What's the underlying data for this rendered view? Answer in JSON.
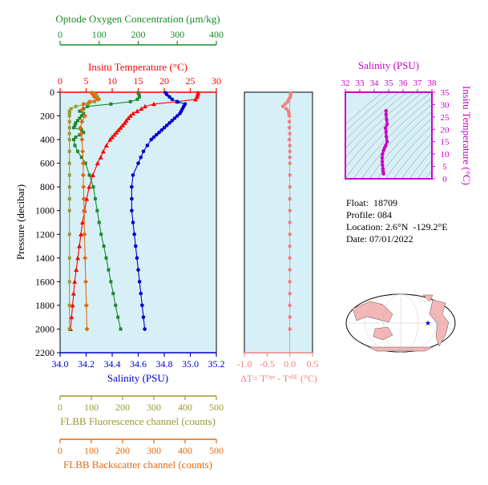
{
  "colors": {
    "background": "#ffffff",
    "panel": "#d7f0f7",
    "oxygen": "#1a8a2a",
    "temperature": "#ff0000",
    "salinity": "#0000cc",
    "fluorescence": "#9a9a30",
    "backscatter": "#e06a10",
    "delta_t": "#f08080",
    "ts_axis": "#cc00cc",
    "map_land": "#f4b6b6",
    "map_ocean": "#ffffff"
  },
  "chart_data": [
    {
      "type": "line",
      "title": "",
      "ylabel": "Pressure (decibar)",
      "ylim": [
        2200,
        0
      ],
      "yticks": [
        0,
        200,
        400,
        600,
        800,
        1000,
        1200,
        1400,
        1600,
        1800,
        2000,
        2200
      ],
      "axes": {
        "oxygen": {
          "label": "Optode Oxygen Concentration (μm/kg)",
          "range": [
            0,
            400
          ],
          "ticks": [
            0,
            100,
            200,
            300,
            400
          ]
        },
        "temperature": {
          "label": "Insitu Temperature (°C)",
          "range": [
            0,
            30
          ],
          "ticks": [
            0,
            5,
            10,
            15,
            20,
            25,
            30
          ]
        },
        "salinity": {
          "label": "Salinity (PSU)",
          "range": [
            34.0,
            35.2
          ],
          "ticks": [
            "34.0",
            "34.2",
            "34.4",
            "34.6",
            "34.8",
            "35.0",
            "35.2"
          ]
        },
        "fluorescence": {
          "label": "FLBB Fluorescence channel (counts)",
          "range": [
            0,
            500
          ],
          "ticks": [
            0,
            100,
            200,
            300,
            400,
            500
          ]
        },
        "backscatter": {
          "label": "FLBB Backscatter channel (counts)",
          "range": [
            0,
            500
          ],
          "ticks": [
            0,
            100,
            200,
            300,
            400,
            500
          ]
        }
      },
      "series": [
        {
          "key": "temperature",
          "marker": "triangle",
          "pressure": [
            5,
            20,
            40,
            60,
            80,
            100,
            120,
            140,
            160,
            180,
            200,
            220,
            240,
            260,
            280,
            300,
            320,
            340,
            360,
            380,
            400,
            450,
            500,
            550,
            600,
            700,
            800,
            900,
            1000,
            1100,
            1200,
            1300,
            1400,
            1500,
            1600,
            1700,
            1800,
            1900,
            2000
          ],
          "values": [
            26.5,
            26.4,
            26.3,
            26.0,
            22.5,
            18.0,
            16.3,
            15.6,
            14.8,
            14.0,
            13.5,
            13.1,
            12.7,
            12.4,
            12.0,
            11.6,
            11.2,
            10.8,
            10.4,
            10.0,
            9.6,
            8.9,
            8.3,
            7.8,
            7.2,
            6.3,
            5.6,
            5.1,
            4.7,
            4.3,
            4.0,
            3.7,
            3.4,
            3.1,
            2.8,
            2.6,
            2.4,
            2.2,
            2.0
          ]
        },
        {
          "key": "salinity",
          "marker": "circle",
          "pressure": [
            5,
            20,
            40,
            60,
            80,
            100,
            120,
            140,
            160,
            180,
            200,
            220,
            240,
            260,
            280,
            300,
            320,
            340,
            360,
            380,
            400,
            450,
            500,
            550,
            600,
            700,
            800,
            900,
            1000,
            1100,
            1200,
            1300,
            1400,
            1500,
            1600,
            1700,
            1800,
            1900,
            2000
          ],
          "values": [
            34.81,
            34.82,
            34.84,
            34.86,
            34.9,
            34.96,
            34.95,
            34.94,
            34.93,
            34.92,
            34.9,
            34.88,
            34.86,
            34.84,
            34.82,
            34.8,
            34.78,
            34.76,
            34.74,
            34.72,
            34.7,
            34.67,
            34.64,
            34.62,
            34.6,
            34.56,
            34.55,
            34.55,
            34.55,
            34.56,
            34.57,
            34.58,
            34.59,
            34.6,
            34.61,
            34.62,
            34.63,
            34.64,
            34.65
          ]
        },
        {
          "key": "oxygen",
          "marker": "square",
          "pressure": [
            5,
            20,
            40,
            60,
            80,
            100,
            120,
            140,
            160,
            180,
            200,
            220,
            240,
            260,
            280,
            300,
            320,
            340,
            360,
            380,
            400,
            450,
            500,
            550,
            600,
            700,
            800,
            900,
            1000,
            1100,
            1200,
            1300,
            1400,
            1500,
            1600,
            1700,
            1800,
            1900,
            2000
          ],
          "values": [
            200,
            202,
            203,
            198,
            180,
            130,
            70,
            60,
            50,
            60,
            55,
            50,
            45,
            40,
            38,
            35,
            55,
            60,
            50,
            40,
            35,
            38,
            45,
            55,
            65,
            75,
            85,
            90,
            95,
            100,
            105,
            112,
            118,
            124,
            130,
            136,
            142,
            148,
            155
          ]
        },
        {
          "key": "fluorescence",
          "marker": "square",
          "pressure": [
            5,
            20,
            40,
            60,
            80,
            100,
            120,
            140,
            160,
            180,
            200,
            250,
            300,
            350,
            400,
            500,
            600,
            700,
            800,
            900,
            1000,
            1200,
            1400,
            1600,
            1800,
            2000
          ],
          "values": [
            110,
            115,
            120,
            125,
            110,
            90,
            50,
            35,
            30,
            30,
            30,
            30,
            30,
            30,
            30,
            30,
            30,
            30,
            30,
            30,
            30,
            30,
            30,
            30,
            30,
            30
          ]
        },
        {
          "key": "backscatter",
          "marker": "diamond",
          "pressure": [
            5,
            20,
            40,
            60,
            80,
            100,
            150,
            200,
            250,
            300,
            350,
            400,
            500,
            600,
            700,
            800,
            900,
            1000,
            1200,
            1400,
            1600,
            1800,
            2000
          ],
          "values": [
            100,
            105,
            110,
            120,
            95,
            75,
            70,
            80,
            70,
            65,
            68,
            70,
            72,
            74,
            74,
            75,
            76,
            77,
            78,
            80,
            82,
            84,
            86
          ]
        }
      ]
    },
    {
      "type": "scatter",
      "xlabel": "ΔT= Tᴼᵖᵗ - Tˢᴮᴱ (°C)",
      "xlim": [
        -1.0,
        0.5
      ],
      "xticks": [
        "-1.0",
        "-0.5",
        "0.0",
        "0.5"
      ],
      "ylim": [
        2200,
        0
      ],
      "series": [
        {
          "key": "delta_t",
          "marker": "circle",
          "pressure": [
            5,
            20,
            40,
            60,
            80,
            100,
            120,
            140,
            160,
            180,
            200,
            250,
            300,
            350,
            400,
            450,
            500,
            550,
            600,
            700,
            800,
            900,
            1000,
            1100,
            1200,
            1300,
            1400,
            1500,
            1600,
            1700,
            1800,
            1900,
            2000
          ],
          "values": [
            0.02,
            0.02,
            0.01,
            -0.02,
            -0.05,
            -0.1,
            -0.15,
            -0.08,
            -0.03,
            -0.02,
            -0.01,
            -0.01,
            -0.01,
            0.0,
            -0.01,
            0.0,
            0.0,
            0.0,
            0.0,
            0.0,
            0.0,
            0.0,
            0.0,
            0.0,
            0.0,
            0.0,
            0.0,
            0.0,
            0.0,
            0.0,
            0.0,
            0.0,
            0.0
          ]
        }
      ]
    },
    {
      "type": "line",
      "xlabel": "Salinity (PSU)",
      "ylabel": "Insitu Temperature (°C)",
      "xlim": [
        32,
        38
      ],
      "ylim": [
        0,
        35
      ],
      "xticks": [
        32,
        33,
        34,
        35,
        36,
        37,
        38
      ],
      "yticks": [
        0,
        5,
        10,
        15,
        20,
        25,
        30,
        35
      ],
      "series": [
        {
          "key": "ts",
          "marker": "circle",
          "salinity": [
            34.65,
            34.62,
            34.6,
            34.58,
            34.56,
            34.55,
            34.58,
            34.65,
            34.72,
            34.8,
            34.9,
            34.84,
            34.82,
            34.78,
            34.9,
            34.86,
            34.82,
            34.82
          ],
          "temperature": [
            2.0,
            3.0,
            4.0,
            5.5,
            7.0,
            8.5,
            10.0,
            11.5,
            12.5,
            13.5,
            15.0,
            17.0,
            19.0,
            20.5,
            22.0,
            24.0,
            26.0,
            27.5
          ]
        }
      ]
    }
  ],
  "info": {
    "float_label": "Float:",
    "float_value": "18709",
    "profile_label": "Profile:",
    "profile_value": "084",
    "location_label": "Location:",
    "location_value": "2.6°N  -129.2°E",
    "date_label": "Date:",
    "date_value": "07/01/2022"
  }
}
